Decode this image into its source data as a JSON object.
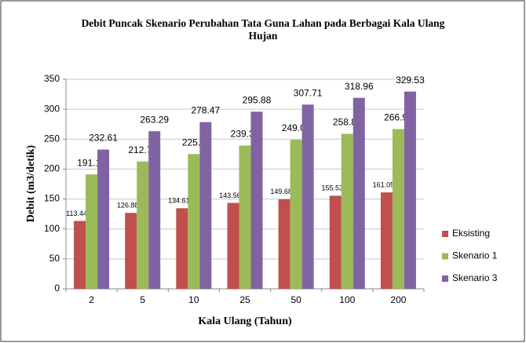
{
  "chart_data": {
    "type": "bar",
    "title": "Debit Puncak Skenario Perubahan Tata Guna Lahan pada Berbagai Kala Ulang Hujan",
    "x_label": "Kala Ulang (Tahun)",
    "y_label": "Debit (m3/detik)",
    "categories": [
      "2",
      "5",
      "10",
      "25",
      "50",
      "100",
      "200"
    ],
    "series": [
      {
        "name": "Eksisting",
        "color": "#c0504d",
        "values": [
          113.44,
          126.88,
          134.61,
          143.56,
          149.68,
          155.53,
          161.05
        ]
      },
      {
        "name": "Skenario 1",
        "color": "#9bbb59",
        "values": [
          191.14,
          212.71,
          225.1,
          239.32,
          249.01,
          258.81,
          266.91
        ]
      },
      {
        "name": "Skenario 3",
        "color": "#8064a2",
        "values": [
          232.61,
          263.29,
          278.47,
          295.88,
          307.71,
          318.96,
          329.53
        ]
      }
    ],
    "ylim": [
      0,
      350
    ],
    "yticks": [
      0,
      50,
      100,
      150,
      200,
      250,
      300,
      350
    ],
    "grid": true,
    "legend": "right"
  }
}
